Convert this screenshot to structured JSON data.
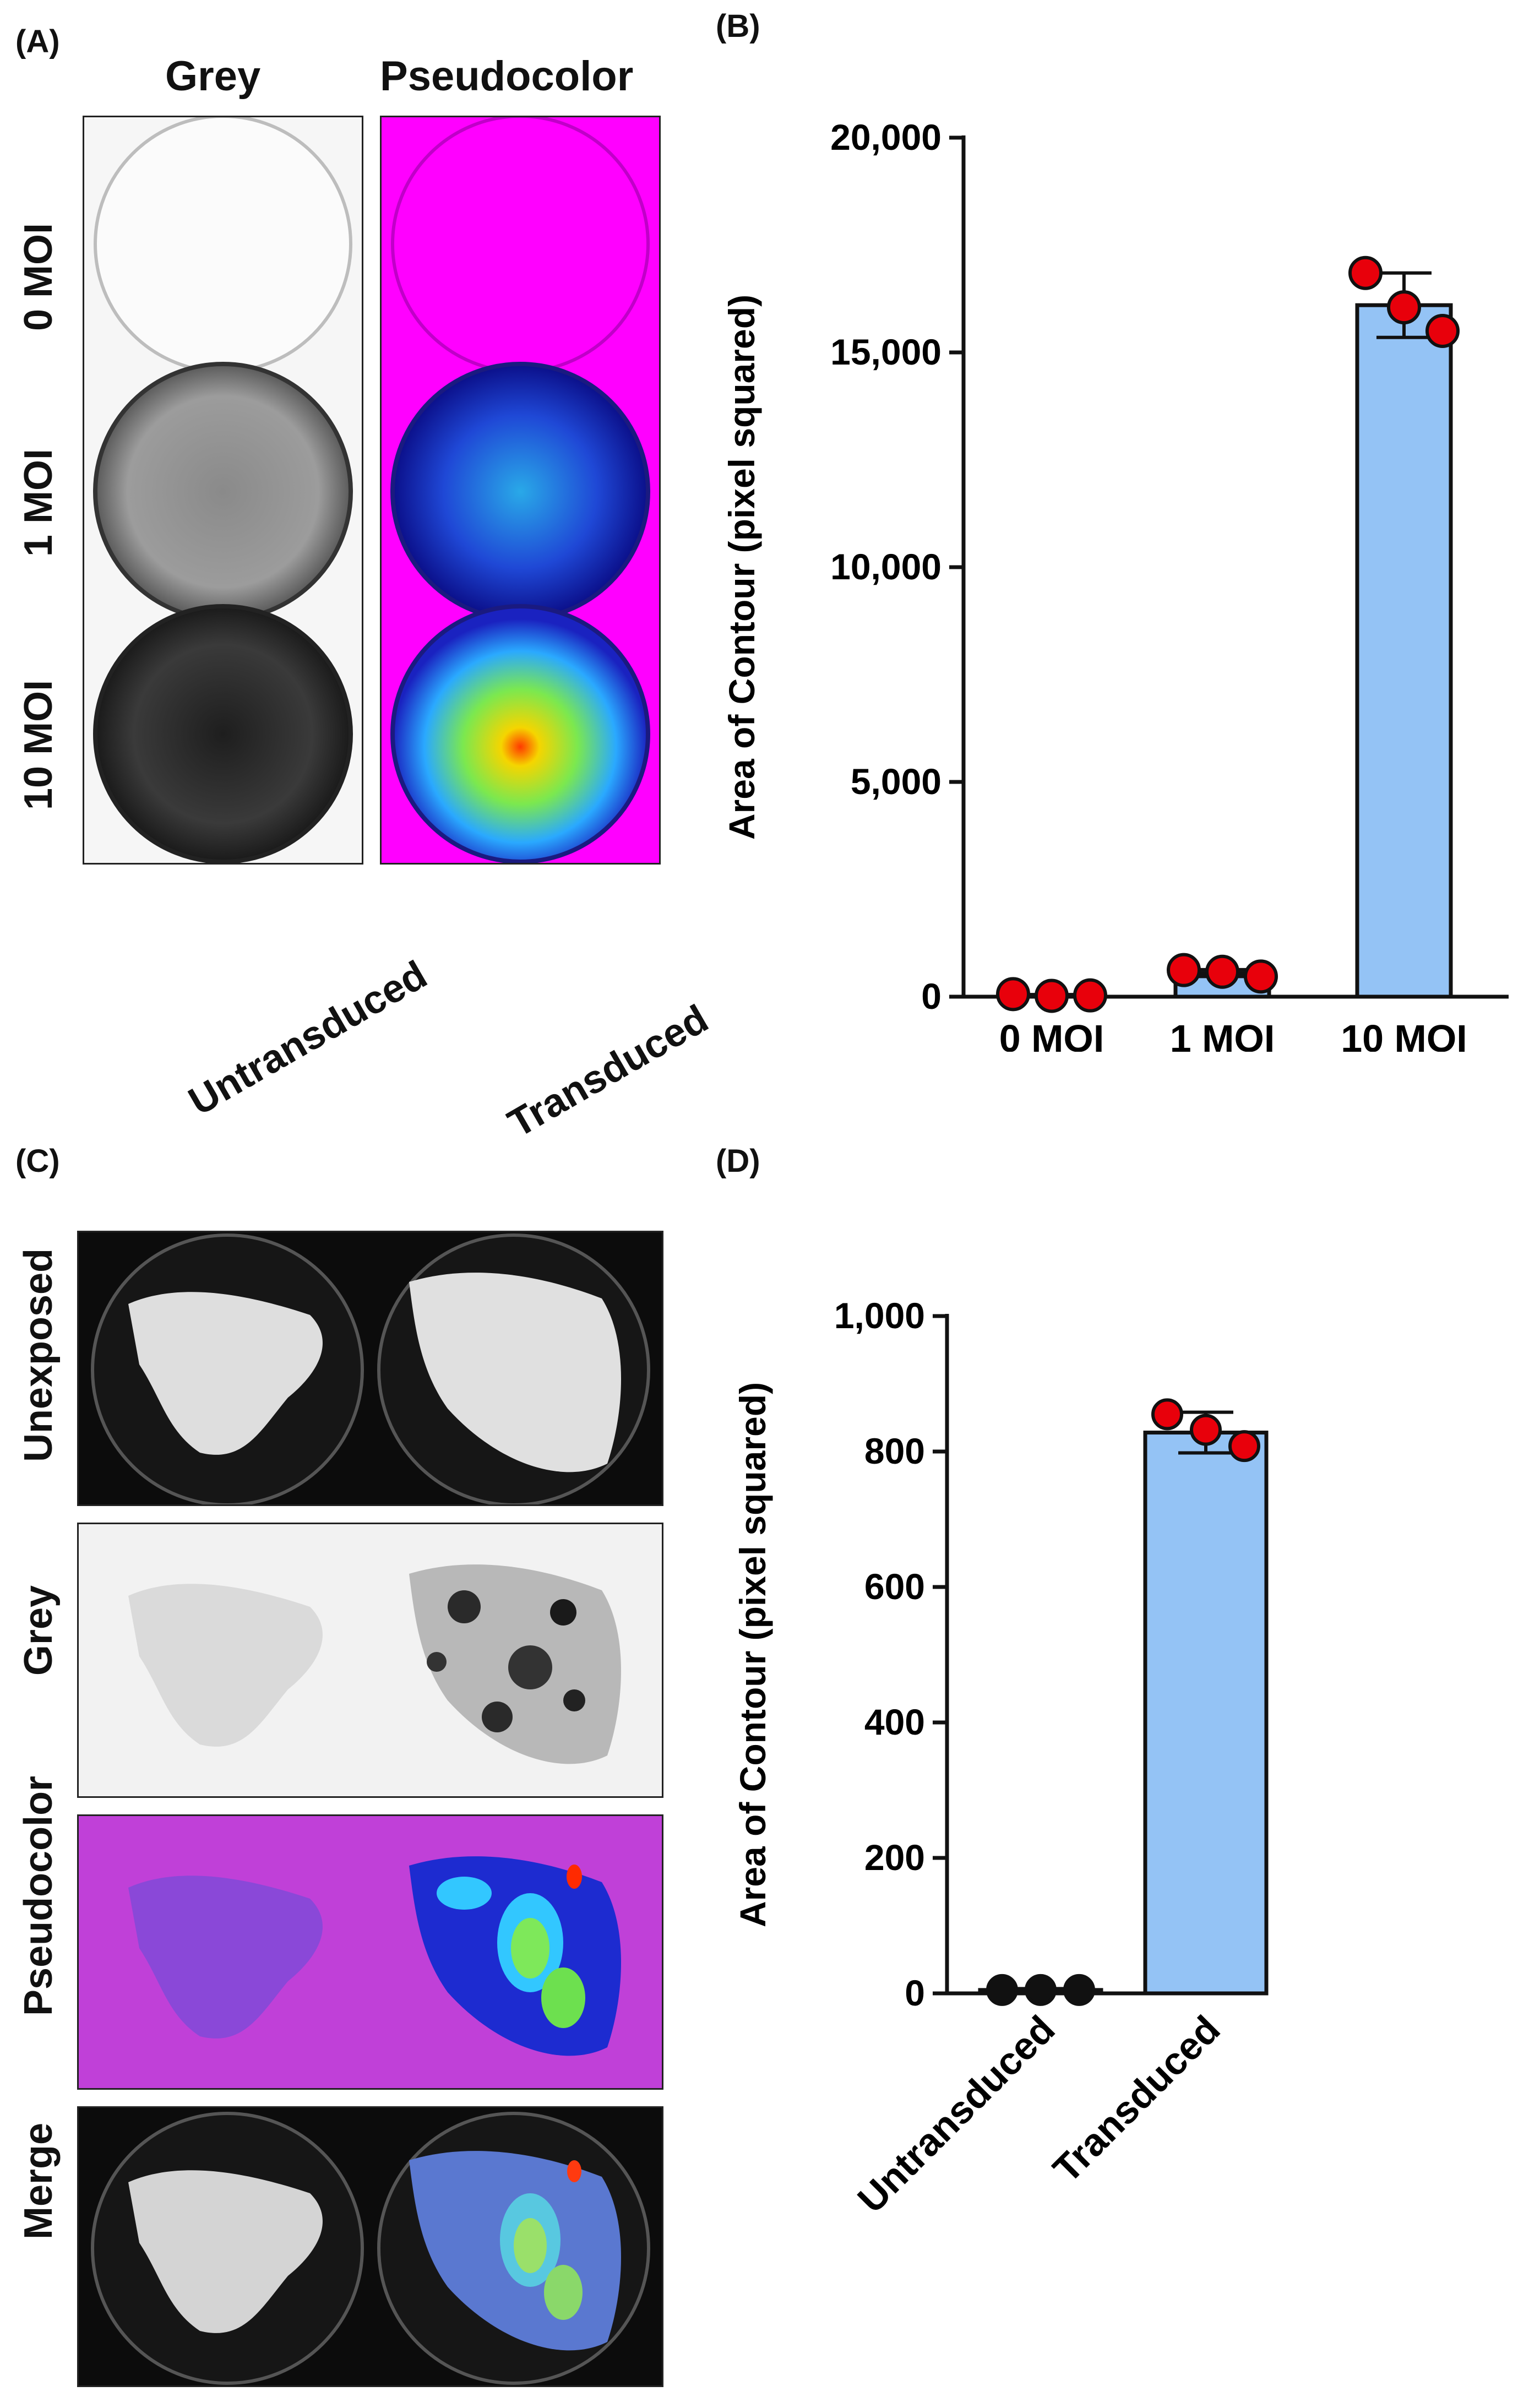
{
  "panels": {
    "a": {
      "letter": "(A)",
      "col_headers": [
        "Grey",
        "Pseudocolor"
      ],
      "row_labels": [
        "0 MOI",
        "1 MOI",
        "10 MOI"
      ]
    },
    "b": {
      "letter": "(B)"
    },
    "c": {
      "letter": "(C)",
      "col_headers": [
        "Untransduced",
        "Transduced"
      ],
      "row_labels": [
        "Unexposed",
        "Grey",
        "Pseudocolor",
        "Merge"
      ]
    },
    "d": {
      "letter": "(D)"
    }
  },
  "colors": {
    "bar_fill": "#94C3F5",
    "bar_stroke": "#111111",
    "point_fill": "#E8000B",
    "point_fill_d_untransduced": "#111111",
    "pseudocolor_background": "#FF00FF"
  },
  "chart_data": [
    {
      "panel": "B",
      "type": "bar",
      "categories": [
        "0 MOI",
        "1 MOI",
        "10 MOI"
      ],
      "values": [
        30,
        550,
        16100
      ],
      "error": [
        20,
        80,
        750
      ],
      "points": [
        [
          60,
          20,
          30
        ],
        [
          620,
          580,
          470
        ],
        [
          16850,
          16050,
          15500
        ]
      ],
      "ylabel": "Area of Contour (pixel squared)",
      "xlabel": "",
      "ylim": [
        0,
        20000
      ],
      "yticks": [
        0,
        5000,
        10000,
        15000,
        20000
      ],
      "ytick_labels": [
        "0",
        "5,000",
        "10,000",
        "15,000",
        "20,000"
      ]
    },
    {
      "panel": "D",
      "type": "bar",
      "categories": [
        "Untransduced",
        "Transduced"
      ],
      "values": [
        5,
        828
      ],
      "error": [
        2,
        30
      ],
      "points": [
        [
          5,
          5,
          5
        ],
        [
          855,
          832,
          808
        ]
      ],
      "ylabel": "Area of Contour (pixel squared)",
      "xlabel": "",
      "ylim": [
        0,
        1000
      ],
      "yticks": [
        0,
        200,
        400,
        600,
        800,
        1000
      ],
      "ytick_labels": [
        "0",
        "200",
        "400",
        "600",
        "800",
        "1,000"
      ]
    }
  ]
}
